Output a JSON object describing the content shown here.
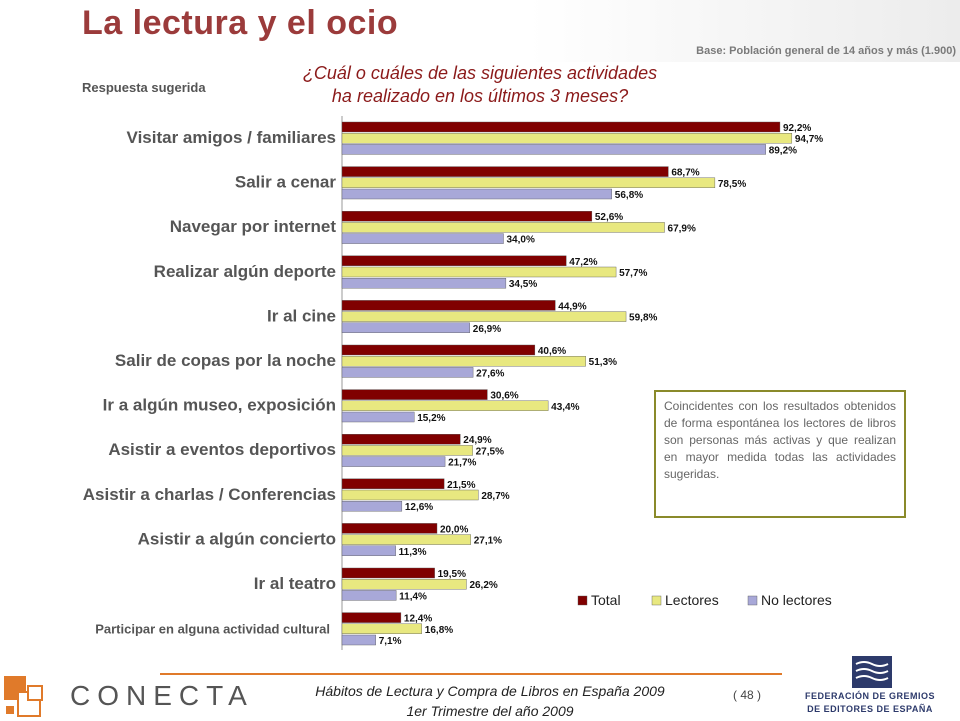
{
  "page": {
    "title": "La lectura y el ocio",
    "base_note": "Base: Población general de 14 años y más (1.900)",
    "suggested_label": "Respuesta sugerida",
    "question_line1": "¿Cuál o cuáles de las siguientes actividades",
    "question_line2": "ha realizado en los últimos 3 meses?",
    "note": "Coincidentes con los resultados obtenidos de forma espontánea los lectores de libros son personas más activas y que realizan en mayor medida todas las actividades sugeridas.",
    "footer_line1": "Hábitos de Lectura y Compra de Libros en España 2009",
    "footer_line2": "1er Trimestre del año 2009",
    "page_number": "( 48 )",
    "logo_left": "CONECTA",
    "logo_right_line1": "FEDERACIÓN DE GREMIOS",
    "logo_right_line2": "DE EDITORES DE ESPAÑA"
  },
  "colors": {
    "total": "#800000",
    "lectores": "#e8e880",
    "no_lectores": "#a8a8d8",
    "brand_orange": "#e07a2a",
    "fed_blue": "#2d3a6b"
  },
  "chart_data": {
    "type": "bar",
    "orientation": "horizontal",
    "categories": [
      "Visitar amigos / familiares",
      "Salir a cenar",
      "Navegar por internet",
      "Realizar algún deporte",
      "Ir al cine",
      "Salir de copas por la noche",
      "Ir a algún museo, exposición",
      "Asistir a eventos deportivos",
      "Asistir a charlas / Conferencias",
      "Asistir a algún concierto",
      "Ir al teatro",
      "Participar en alguna actividad cultural"
    ],
    "series": [
      {
        "name": "Total",
        "values": [
          92.2,
          68.7,
          52.6,
          47.2,
          44.9,
          40.6,
          30.6,
          24.9,
          21.5,
          20.0,
          19.5,
          12.4
        ],
        "labels": [
          "92,2%",
          "68,7%",
          "52,6%",
          "47,2%",
          "44,9%",
          "40,6%",
          "30,6%",
          "24,9%",
          "21,5%",
          "20,0%",
          "19,5%",
          "12,4%"
        ]
      },
      {
        "name": "Lectores",
        "values": [
          94.7,
          78.5,
          67.9,
          57.7,
          59.8,
          51.3,
          43.4,
          27.5,
          28.7,
          27.1,
          26.2,
          16.8
        ],
        "labels": [
          "94,7%",
          "78,5%",
          "67,9%",
          "57,7%",
          "59,8%",
          "51,3%",
          "43,4%",
          "27,5%",
          "28,7%",
          "27,1%",
          "26,2%",
          "16,8%"
        ]
      },
      {
        "name": "No lectores",
        "values": [
          89.2,
          56.8,
          34.0,
          34.5,
          26.9,
          27.6,
          15.2,
          21.7,
          12.6,
          11.3,
          11.4,
          7.1
        ],
        "labels": [
          "89,2%",
          "56,8%",
          "34,0%",
          "34,5%",
          "26,9%",
          "27,6%",
          "15,2%",
          "21,7%",
          "12,6%",
          "11,3%",
          "11,4%",
          "7,1%"
        ]
      }
    ],
    "xlim": [
      0,
      100
    ],
    "unit": "%",
    "legend": [
      "Total",
      "Lectores",
      "No lectores"
    ],
    "legend_position": "bottom-right"
  }
}
